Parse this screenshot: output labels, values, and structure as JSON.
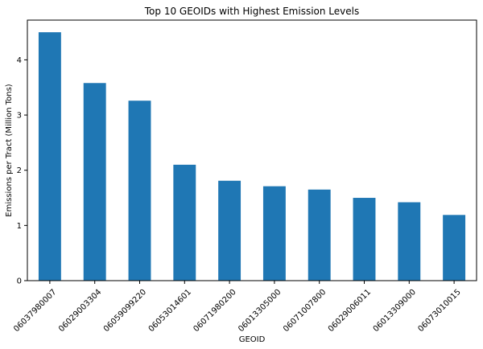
{
  "chart_data": {
    "type": "bar",
    "title": "Top 10 GEOIDs with Highest Emission Levels",
    "xlabel": "GEOID",
    "ylabel": "Emissions per Tract (Million Tons)",
    "categories": [
      "06037980007",
      "06029003304",
      "06059099220",
      "06053014601",
      "06071980200",
      "06013305000",
      "06071007800",
      "06029006011",
      "06013309000",
      "06073010015"
    ],
    "values": [
      4.5,
      3.58,
      3.26,
      2.1,
      1.81,
      1.71,
      1.65,
      1.5,
      1.42,
      1.19
    ],
    "ylim": [
      0,
      4.72
    ],
    "yticks": [
      0,
      1,
      2,
      3,
      4
    ],
    "grid": false,
    "legend": "none",
    "bar_color": "#1f77b4"
  }
}
